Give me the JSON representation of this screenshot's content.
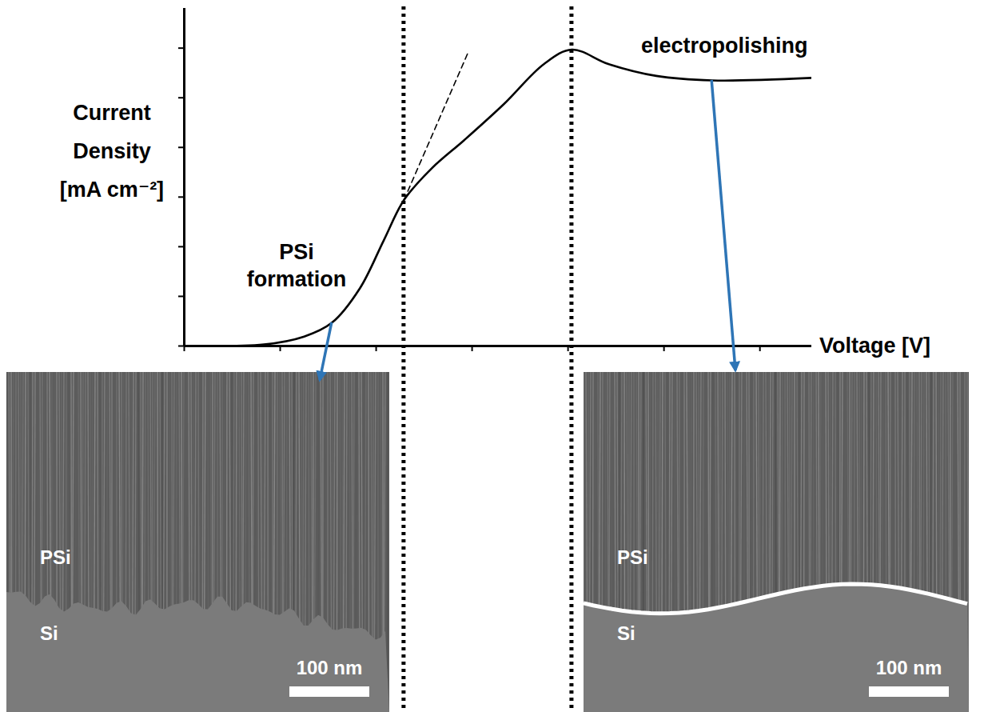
{
  "chart_data": {
    "type": "line",
    "xlabel": "Voltage [V]",
    "ylabel": "Current Density [mA cm⁻²]",
    "x": [
      0,
      0.83,
      1.25,
      1.54,
      1.83,
      2.08,
      2.29,
      2.58,
      2.92,
      3.33,
      3.75,
      4.04,
      4.42,
      4.92,
      5.5,
      6.54
    ],
    "values": [
      0,
      0.03,
      0.19,
      0.47,
      1.16,
      2.13,
      2.94,
      3.58,
      4.15,
      4.87,
      5.68,
      5.97,
      5.68,
      5.44,
      5.35,
      5.4
    ],
    "color": "#000000",
    "xlim": [
      0,
      6.54
    ],
    "ylim": [
      0,
      6.8
    ],
    "xticks": [
      0,
      1,
      2,
      3,
      4,
      5,
      6
    ],
    "yticks": [
      0,
      1,
      2,
      3,
      4,
      5,
      6
    ],
    "tick_labels": false,
    "grid": false,
    "tangent": {
      "x": [
        2.29,
        2.96
      ],
      "values": [
        2.94,
        5.92
      ],
      "line_style": "dashed"
    },
    "vlines": {
      "x": [
        2.29,
        4.04
      ],
      "line_style": "dotted"
    },
    "annotations": [
      {
        "text": "PSi formation",
        "x": 1.17,
        "y": 1.65
      },
      {
        "text": "electropolishing",
        "x": 5.63,
        "y": 6.08
      }
    ],
    "arrows": {
      "color": "#2e75b6",
      "from": [
        {
          "x": 1.54,
          "y": 0.47
        },
        {
          "x": 5.5,
          "y": 5.35
        }
      ]
    },
    "panels": [
      {
        "labels": [
          "PSi",
          "Si"
        ],
        "scale_bar": "100 nm"
      },
      {
        "labels": [
          "PSi",
          "Si"
        ],
        "scale_bar": "100 nm"
      }
    ]
  }
}
